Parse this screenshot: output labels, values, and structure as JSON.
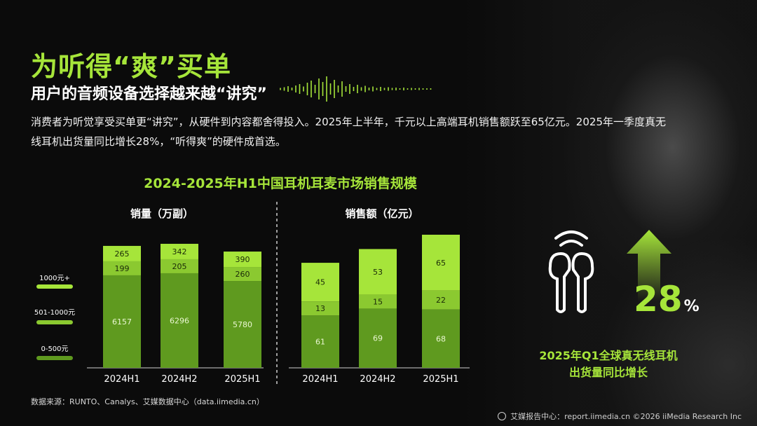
{
  "header": {
    "title": "为听得“爽”买单",
    "subtitle": "用户的音频设备选择越来越“讲究”"
  },
  "description": "消费者为听觉享受买单更“讲究”，从硬件到内容都舍得投入。2025年上半年，千元以上高端耳机销售额跃至65亿元。2025年一季度真无线耳机出货量同比增长28%，“听得爽”的硬件成首选。",
  "chart_data": {
    "type": "bar",
    "stacked": true,
    "title": "2024-2025年H1中国耳机耳麦市场销售规模",
    "legend": [
      "1000元+",
      "501-1000元",
      "0-500元"
    ],
    "colors": {
      "premium": "#a6e53a",
      "mid": "#8bc930",
      "low": "#5f9a1f"
    },
    "panels": [
      {
        "name": "销量（万副）",
        "categories": [
          "2024H1",
          "2024H2",
          "2025H1"
        ],
        "series": [
          {
            "name": "0-500元",
            "values": [
              6157,
              6296,
              5780
            ]
          },
          {
            "name": "501-1000元",
            "values": [
              199,
              205,
              260
            ]
          },
          {
            "name": "1000元+",
            "values": [
              265,
              342,
              390
            ]
          }
        ]
      },
      {
        "name": "销售额（亿元）",
        "categories": [
          "2024H1",
          "2024H2",
          "2025H1"
        ],
        "series": [
          {
            "name": "0-500元",
            "values": [
              61,
              69,
              68
            ]
          },
          {
            "name": "501-1000元",
            "values": [
              13,
              15,
              22
            ]
          },
          {
            "name": "1000元+",
            "values": [
              45,
              53,
              65
            ]
          }
        ]
      }
    ]
  },
  "stat": {
    "value": "28",
    "unit": "%",
    "caption_line1": "2025年Q1全球真无线耳机",
    "caption_line2": "出货量同比增长"
  },
  "source": "数据来源：RUNTO、Canalys、艾媒数据中心（data.iimedia.cn）",
  "footer": "艾媒报告中心：report.iimedia.cn  ©2026  iiMedia Research  Inc"
}
